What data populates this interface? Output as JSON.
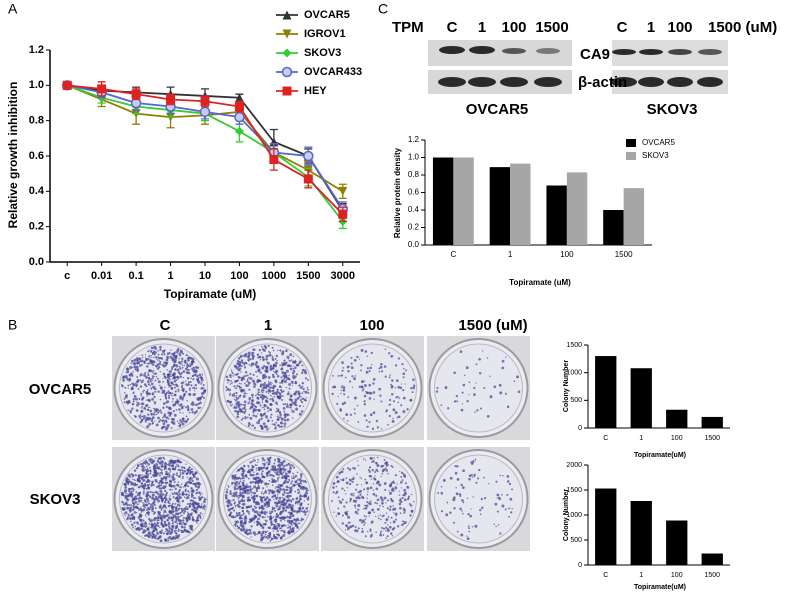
{
  "chart_data": [
    {
      "type": "line",
      "x_label": "Topiramate  (uM)",
      "y_label": "Relative growth inhibition",
      "categories": [
        "c",
        "0.01",
        "0.1",
        "1",
        "10",
        "100",
        "1000",
        "1500",
        "3000"
      ],
      "ylim": [
        0,
        1.2
      ],
      "yticks": [
        {
          "value": 0,
          "label": "0.0"
        },
        0.2,
        0.4,
        0.6,
        0.8,
        {
          "value": 1,
          "label": "1.0"
        },
        1.2
      ],
      "legend": "top-right",
      "series": [
        {
          "name": "OVCAR5",
          "color": "#333333",
          "marker": "triangle",
          "values": [
            1.0,
            0.97,
            0.96,
            0.95,
            0.94,
            0.93,
            0.68,
            0.6,
            0.29
          ],
          "errors": [
            0.02,
            0.03,
            0.03,
            0.04,
            0.04,
            0.02,
            0.07,
            0.04,
            0.04
          ]
        },
        {
          "name": "IGROV1",
          "color": "#8b8000",
          "marker": "triangle-down",
          "values": [
            1.0,
            0.92,
            0.84,
            0.82,
            0.83,
            0.85,
            0.62,
            0.52,
            0.4
          ],
          "errors": [
            0.02,
            0.04,
            0.06,
            0.06,
            0.05,
            0.04,
            0.05,
            0.05,
            0.04
          ]
        },
        {
          "name": "SKOV3",
          "color": "#33cc33",
          "marker": "diamond",
          "values": [
            1.0,
            0.93,
            0.88,
            0.86,
            0.84,
            0.74,
            0.62,
            0.48,
            0.23
          ],
          "errors": [
            0.02,
            0.03,
            0.04,
            0.04,
            0.04,
            0.06,
            0.05,
            0.05,
            0.04
          ]
        },
        {
          "name": "OVCAR433",
          "color": "#5566cc",
          "marker": "circle",
          "values": [
            1.0,
            0.96,
            0.9,
            0.88,
            0.85,
            0.82,
            0.62,
            0.6,
            0.3
          ],
          "errors": [
            0.02,
            0.03,
            0.04,
            0.04,
            0.04,
            0.04,
            0.05,
            0.05,
            0.04
          ]
        },
        {
          "name": "HEY",
          "color": "#dd2222",
          "marker": "square",
          "values": [
            1.0,
            0.98,
            0.95,
            0.92,
            0.91,
            0.88,
            0.58,
            0.47,
            0.27
          ],
          "errors": [
            0.02,
            0.04,
            0.03,
            0.03,
            0.03,
            0.03,
            0.06,
            0.05,
            0.04
          ]
        }
      ]
    },
    {
      "type": "bar",
      "x_label": "Topiramate (uM)",
      "y_label": "Relative protein density",
      "categories": [
        "C",
        "1",
        "100",
        "1500"
      ],
      "ylim": [
        0,
        1.2
      ],
      "yticks": [
        {
          "value": 0,
          "label": "0.0"
        },
        0.2,
        0.4,
        0.6,
        0.8,
        {
          "value": 1,
          "label": "1.0"
        },
        1.2
      ],
      "legend": "top-right",
      "series": [
        {
          "name": "OVCAR5",
          "color": "#000000",
          "values": [
            1.0,
            0.89,
            0.68,
            0.4
          ]
        },
        {
          "name": "SKOV3",
          "color": "#a6a6a6",
          "values": [
            1.0,
            0.93,
            0.83,
            0.65
          ]
        }
      ]
    },
    {
      "type": "bar",
      "x_label": "Topiramate(uM)",
      "y_label": "Colony Number",
      "categories": [
        "C",
        "1",
        "100",
        "1500"
      ],
      "values": [
        1300,
        1080,
        330,
        200
      ],
      "color": "#000000",
      "ylim": [
        0,
        1500
      ],
      "yticks": [
        0,
        500,
        1000,
        1500
      ]
    },
    {
      "type": "bar",
      "x_label": "Topiramate(uM)",
      "y_label": "Colony Number",
      "categories": [
        "C",
        "1",
        "100",
        "1500"
      ],
      "values": [
        1530,
        1280,
        890,
        230
      ],
      "color": "#000000",
      "ylim": [
        0,
        2000
      ],
      "yticks": [
        0,
        500,
        1000,
        1500,
        2000
      ]
    }
  ],
  "figure": {
    "panels": [
      "A",
      "B",
      "C"
    ],
    "blot": {
      "treatment": "TPM",
      "lanes_left": [
        "C",
        "1",
        "100",
        "1500"
      ],
      "lanes_right": [
        "C",
        "1",
        "100",
        "1500 (uM)"
      ],
      "proteins": [
        "CA9",
        "β-actin"
      ],
      "cells": [
        "OVCAR5",
        "SKOV3"
      ]
    },
    "colony": {
      "columns": [
        "C",
        "1",
        "100",
        "1500 (uM)"
      ],
      "rows": [
        "OVCAR5",
        "SKOV3"
      ]
    }
  }
}
